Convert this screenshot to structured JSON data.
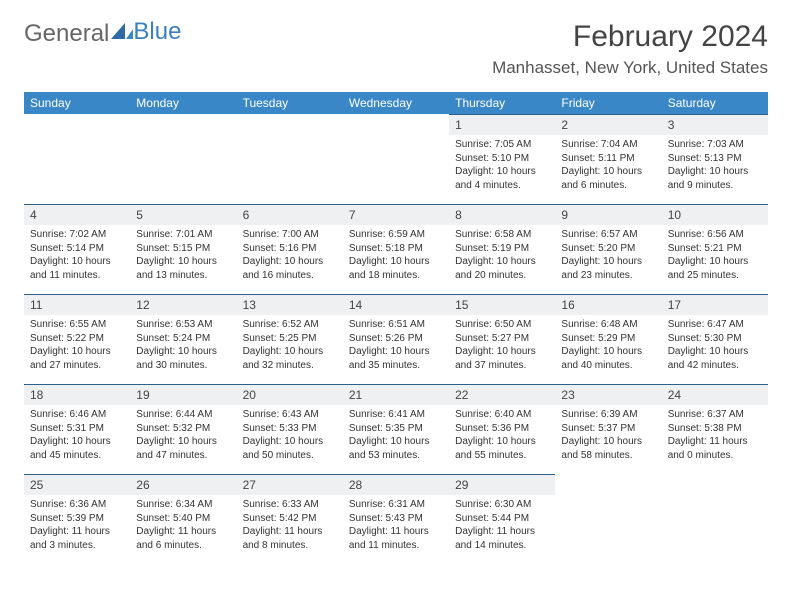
{
  "brand": {
    "part1": "General",
    "part2": "Blue"
  },
  "title": "February 2024",
  "location": "Manhasset, New York, United States",
  "colors": {
    "header_bg": "#3a87c7",
    "daynum_bg": "#eef0f2",
    "daynum_border": "#2e5f8a",
    "text": "#333333",
    "title": "#444444"
  },
  "weekdays": [
    "Sunday",
    "Monday",
    "Tuesday",
    "Wednesday",
    "Thursday",
    "Friday",
    "Saturday"
  ],
  "grid": [
    [
      null,
      null,
      null,
      null,
      {
        "n": "1",
        "sr": "Sunrise: 7:05 AM",
        "ss": "Sunset: 5:10 PM",
        "d1": "Daylight: 10 hours",
        "d2": "and 4 minutes."
      },
      {
        "n": "2",
        "sr": "Sunrise: 7:04 AM",
        "ss": "Sunset: 5:11 PM",
        "d1": "Daylight: 10 hours",
        "d2": "and 6 minutes."
      },
      {
        "n": "3",
        "sr": "Sunrise: 7:03 AM",
        "ss": "Sunset: 5:13 PM",
        "d1": "Daylight: 10 hours",
        "d2": "and 9 minutes."
      }
    ],
    [
      {
        "n": "4",
        "sr": "Sunrise: 7:02 AM",
        "ss": "Sunset: 5:14 PM",
        "d1": "Daylight: 10 hours",
        "d2": "and 11 minutes."
      },
      {
        "n": "5",
        "sr": "Sunrise: 7:01 AM",
        "ss": "Sunset: 5:15 PM",
        "d1": "Daylight: 10 hours",
        "d2": "and 13 minutes."
      },
      {
        "n": "6",
        "sr": "Sunrise: 7:00 AM",
        "ss": "Sunset: 5:16 PM",
        "d1": "Daylight: 10 hours",
        "d2": "and 16 minutes."
      },
      {
        "n": "7",
        "sr": "Sunrise: 6:59 AM",
        "ss": "Sunset: 5:18 PM",
        "d1": "Daylight: 10 hours",
        "d2": "and 18 minutes."
      },
      {
        "n": "8",
        "sr": "Sunrise: 6:58 AM",
        "ss": "Sunset: 5:19 PM",
        "d1": "Daylight: 10 hours",
        "d2": "and 20 minutes."
      },
      {
        "n": "9",
        "sr": "Sunrise: 6:57 AM",
        "ss": "Sunset: 5:20 PM",
        "d1": "Daylight: 10 hours",
        "d2": "and 23 minutes."
      },
      {
        "n": "10",
        "sr": "Sunrise: 6:56 AM",
        "ss": "Sunset: 5:21 PM",
        "d1": "Daylight: 10 hours",
        "d2": "and 25 minutes."
      }
    ],
    [
      {
        "n": "11",
        "sr": "Sunrise: 6:55 AM",
        "ss": "Sunset: 5:22 PM",
        "d1": "Daylight: 10 hours",
        "d2": "and 27 minutes."
      },
      {
        "n": "12",
        "sr": "Sunrise: 6:53 AM",
        "ss": "Sunset: 5:24 PM",
        "d1": "Daylight: 10 hours",
        "d2": "and 30 minutes."
      },
      {
        "n": "13",
        "sr": "Sunrise: 6:52 AM",
        "ss": "Sunset: 5:25 PM",
        "d1": "Daylight: 10 hours",
        "d2": "and 32 minutes."
      },
      {
        "n": "14",
        "sr": "Sunrise: 6:51 AM",
        "ss": "Sunset: 5:26 PM",
        "d1": "Daylight: 10 hours",
        "d2": "and 35 minutes."
      },
      {
        "n": "15",
        "sr": "Sunrise: 6:50 AM",
        "ss": "Sunset: 5:27 PM",
        "d1": "Daylight: 10 hours",
        "d2": "and 37 minutes."
      },
      {
        "n": "16",
        "sr": "Sunrise: 6:48 AM",
        "ss": "Sunset: 5:29 PM",
        "d1": "Daylight: 10 hours",
        "d2": "and 40 minutes."
      },
      {
        "n": "17",
        "sr": "Sunrise: 6:47 AM",
        "ss": "Sunset: 5:30 PM",
        "d1": "Daylight: 10 hours",
        "d2": "and 42 minutes."
      }
    ],
    [
      {
        "n": "18",
        "sr": "Sunrise: 6:46 AM",
        "ss": "Sunset: 5:31 PM",
        "d1": "Daylight: 10 hours",
        "d2": "and 45 minutes."
      },
      {
        "n": "19",
        "sr": "Sunrise: 6:44 AM",
        "ss": "Sunset: 5:32 PM",
        "d1": "Daylight: 10 hours",
        "d2": "and 47 minutes."
      },
      {
        "n": "20",
        "sr": "Sunrise: 6:43 AM",
        "ss": "Sunset: 5:33 PM",
        "d1": "Daylight: 10 hours",
        "d2": "and 50 minutes."
      },
      {
        "n": "21",
        "sr": "Sunrise: 6:41 AM",
        "ss": "Sunset: 5:35 PM",
        "d1": "Daylight: 10 hours",
        "d2": "and 53 minutes."
      },
      {
        "n": "22",
        "sr": "Sunrise: 6:40 AM",
        "ss": "Sunset: 5:36 PM",
        "d1": "Daylight: 10 hours",
        "d2": "and 55 minutes."
      },
      {
        "n": "23",
        "sr": "Sunrise: 6:39 AM",
        "ss": "Sunset: 5:37 PM",
        "d1": "Daylight: 10 hours",
        "d2": "and 58 minutes."
      },
      {
        "n": "24",
        "sr": "Sunrise: 6:37 AM",
        "ss": "Sunset: 5:38 PM",
        "d1": "Daylight: 11 hours",
        "d2": "and 0 minutes."
      }
    ],
    [
      {
        "n": "25",
        "sr": "Sunrise: 6:36 AM",
        "ss": "Sunset: 5:39 PM",
        "d1": "Daylight: 11 hours",
        "d2": "and 3 minutes."
      },
      {
        "n": "26",
        "sr": "Sunrise: 6:34 AM",
        "ss": "Sunset: 5:40 PM",
        "d1": "Daylight: 11 hours",
        "d2": "and 6 minutes."
      },
      {
        "n": "27",
        "sr": "Sunrise: 6:33 AM",
        "ss": "Sunset: 5:42 PM",
        "d1": "Daylight: 11 hours",
        "d2": "and 8 minutes."
      },
      {
        "n": "28",
        "sr": "Sunrise: 6:31 AM",
        "ss": "Sunset: 5:43 PM",
        "d1": "Daylight: 11 hours",
        "d2": "and 11 minutes."
      },
      {
        "n": "29",
        "sr": "Sunrise: 6:30 AM",
        "ss": "Sunset: 5:44 PM",
        "d1": "Daylight: 11 hours",
        "d2": "and 14 minutes."
      },
      null,
      null
    ]
  ]
}
